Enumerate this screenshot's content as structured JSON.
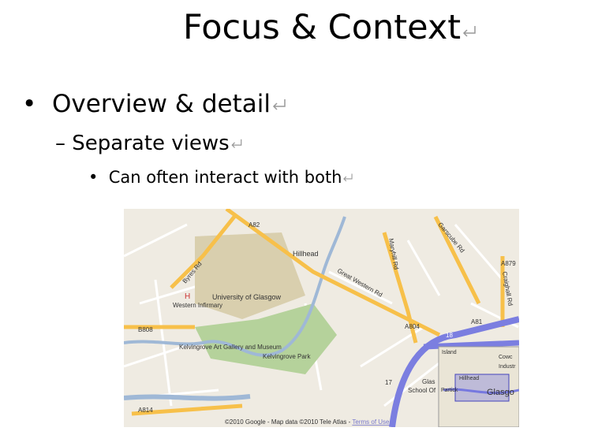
{
  "slide": {
    "title": "Focus & Context",
    "bullets": [
      "Overview & detail",
      "Separate views",
      "Can often interact with both"
    ],
    "map": {
      "labels": [
        "A82",
        "Hillhead",
        "Byres Rd",
        "H",
        "Western Infirmary",
        "University of Glasgow",
        "Great Western Rd",
        "Maryhill Rd",
        "Garscube Rd",
        "A879",
        "Craighall Rd",
        "A81",
        "A804",
        "B808",
        "Kelvingrove Art Gallery and Museum",
        "Kelvingrove Park",
        "18",
        "17",
        "A814",
        "Glas",
        "School Of",
        "Island",
        "Cowc",
        "Industr",
        "Hillhead",
        "Partick",
        "Glasgo"
      ],
      "copyright": "©2010 Google - Map data ©2010 Tele Atlas - ",
      "terms": "Terms of Use"
    }
  }
}
